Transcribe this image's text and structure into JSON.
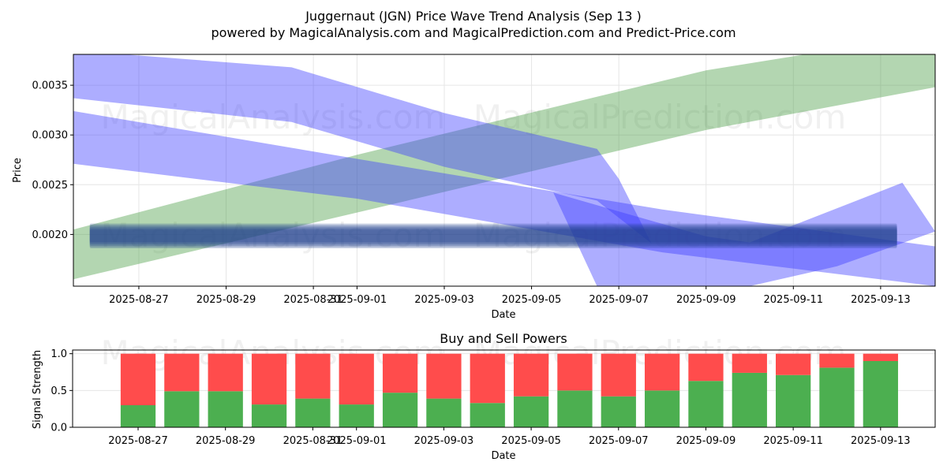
{
  "figure": {
    "title_line1": "Juggernaut (JGN) Price Wave Trend Analysis (Sep 13 )",
    "title_line2": "powered by MagicalAnalysis.com and MagicalPrediction.com and Predict-Price.com",
    "watermarks": [
      "MagicalAnalysis.com",
      "MagicalPrediction.com"
    ]
  },
  "chart_data": [
    {
      "type": "area",
      "xlabel": "Date",
      "ylabel": "Price",
      "xlim": [
        "2025-08-25T12:00",
        "2025-09-14T06:00"
      ],
      "ylim": [
        0.00148,
        0.00381
      ],
      "yticks": [
        0.002,
        0.0025,
        0.003,
        0.0035
      ],
      "ytick_labels": [
        "0.0020",
        "0.0025",
        "0.0030",
        "0.0035"
      ],
      "xtick_labels": [
        "2025-08-27",
        "2025-08-29",
        "2025-08-31",
        "2025-09-01",
        "2025-09-03",
        "2025-09-05",
        "2025-09-07",
        "2025-09-09",
        "2025-09-11",
        "2025-09-13"
      ],
      "xticks": [
        "2025-08-27",
        "2025-08-29",
        "2025-08-31",
        "2025-09-01",
        "2025-09-03",
        "2025-09-05",
        "2025-09-07",
        "2025-09-09",
        "2025-09-11",
        "2025-09-13"
      ],
      "grid": true,
      "colors": {
        "green_band": "#4a9e45",
        "blue_band": "#3b3bff",
        "flat_band": "#1f3f8f"
      },
      "bands": [
        {
          "color": "green",
          "upper": [
            [
              "2025-08-25T12:00",
              0.00205
            ],
            [
              "2025-09-01",
              0.0028
            ],
            [
              "2025-09-09",
              0.00365
            ],
            [
              "2025-09-14T06:00",
              0.00402
            ]
          ],
          "lower": [
            [
              "2025-08-25T12:00",
              0.00155
            ],
            [
              "2025-09-01",
              0.00222
            ],
            [
              "2025-09-09",
              0.00305
            ],
            [
              "2025-09-14T06:00",
              0.00348
            ]
          ]
        },
        {
          "color": "blue",
          "upper": [
            [
              "2025-08-25T12:00",
              0.00385
            ],
            [
              "2025-08-30T12:00",
              0.00368
            ],
            [
              "2025-09-03",
              0.00322
            ],
            [
              "2025-09-06T12:00",
              0.00286
            ],
            [
              "2025-09-07",
              0.00256
            ]
          ],
          "lower": [
            [
              "2025-08-25T12:00",
              0.00337
            ],
            [
              "2025-08-30T12:00",
              0.00313
            ],
            [
              "2025-09-03",
              0.00268
            ],
            [
              "2025-09-06T12:00",
              0.00234
            ],
            [
              "2025-09-07T18:00",
              0.00191
            ],
            [
              "2025-09-07T18:00",
              0.00191
            ]
          ]
        },
        {
          "color": "blue",
          "upper": [
            [
              "2025-08-25T12:00",
              0.00324
            ],
            [
              "2025-09-01",
              0.00276
            ],
            [
              "2025-09-08",
              0.00225
            ],
            [
              "2025-09-14T06:00",
              0.00188
            ]
          ],
          "lower": [
            [
              "2025-08-25T12:00",
              0.00271
            ],
            [
              "2025-09-01",
              0.00236
            ],
            [
              "2025-09-08",
              0.00182
            ],
            [
              "2025-09-14T06:00",
              0.00148
            ]
          ]
        },
        {
          "color": "blue",
          "upper": [
            [
              "2025-09-05T12:00",
              0.00242
            ],
            [
              "2025-09-09",
              0.00198
            ],
            [
              "2025-09-10",
              0.00192
            ],
            [
              "2025-09-13T12:00",
              0.00252
            ],
            [
              "2025-09-14T06:00",
              0.00203
            ]
          ],
          "lower": [
            [
              "2025-09-06T12:00",
              0.00148
            ],
            [
              "2025-09-09",
              0.00148
            ],
            [
              "2025-09-10",
              0.00148
            ],
            [
              "2025-09-12",
              0.00168
            ],
            [
              "2025-09-14T06:00",
              0.00203
            ]
          ]
        }
      ],
      "flat_band": {
        "x_start": "2025-08-25T21:00",
        "x_end": "2025-09-13T09:00",
        "upper": 0.00211,
        "lower": 0.00186
      }
    },
    {
      "type": "bar",
      "title": "Buy and Sell Powers",
      "xlabel": "Date",
      "ylabel": "Signal Strength",
      "ylim": [
        0,
        1.05
      ],
      "yticks": [
        0.0,
        0.5,
        1.0
      ],
      "ytick_labels": [
        "0.0",
        "0.5",
        "1.0"
      ],
      "xtick_labels": [
        "2025-08-27",
        "2025-08-29",
        "2025-08-31",
        "2025-09-01",
        "2025-09-03",
        "2025-09-05",
        "2025-09-07",
        "2025-09-09",
        "2025-09-11",
        "2025-09-13"
      ],
      "xticks": [
        "2025-08-27",
        "2025-08-29",
        "2025-08-31",
        "2025-09-01",
        "2025-09-03",
        "2025-09-05",
        "2025-09-07",
        "2025-09-09",
        "2025-09-11",
        "2025-09-13"
      ],
      "xlim": [
        "2025-08-25T12:00",
        "2025-09-14T06:00"
      ],
      "colors": {
        "buy": "#4caf50",
        "sell": "#ff4c4c"
      },
      "dates": [
        "2025-08-27",
        "2025-08-28",
        "2025-08-29",
        "2025-08-30",
        "2025-08-31",
        "2025-09-01",
        "2025-09-02",
        "2025-09-03",
        "2025-09-04",
        "2025-09-05",
        "2025-09-06",
        "2025-09-07",
        "2025-09-08",
        "2025-09-09",
        "2025-09-10",
        "2025-09-11",
        "2025-09-12",
        "2025-09-13"
      ],
      "series": [
        {
          "name": "Buy",
          "values": [
            0.3,
            0.49,
            0.49,
            0.31,
            0.39,
            0.31,
            0.47,
            0.39,
            0.33,
            0.42,
            0.5,
            0.42,
            0.5,
            0.63,
            0.74,
            0.71,
            0.81,
            0.9
          ]
        },
        {
          "name": "Sell",
          "values": [
            0.7,
            0.51,
            0.51,
            0.69,
            0.61,
            0.69,
            0.53,
            0.61,
            0.67,
            0.58,
            0.5,
            0.58,
            0.5,
            0.37,
            0.26,
            0.29,
            0.19,
            0.1
          ]
        }
      ]
    }
  ]
}
